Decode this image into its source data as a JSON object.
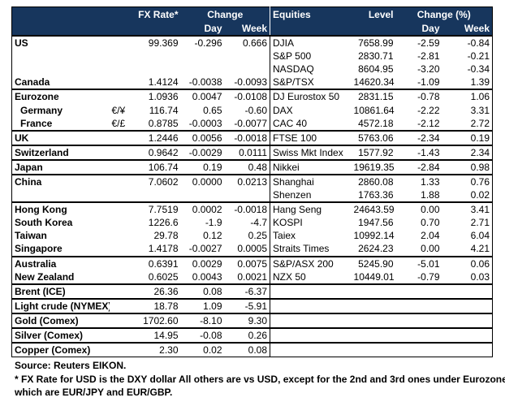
{
  "header": {
    "fx_rate": "FX Rate*",
    "change": "Change",
    "fx_day": "Day",
    "fx_week": "Week",
    "equities": "Equities",
    "level": "Level",
    "change_pct": "Change (%)",
    "eq_day": "Day",
    "eq_week": "Week"
  },
  "table": {
    "groups": [
      [
        [
          "US",
          null,
          "99.369",
          "-0.296",
          "0.666",
          "DJIA",
          "7658.99",
          "-2.59",
          "-0.84"
        ],
        [
          null,
          null,
          null,
          null,
          null,
          "S&P 500",
          "2830.71",
          "-2.81",
          "-0.21"
        ],
        [
          null,
          null,
          null,
          null,
          null,
          "NASDAQ",
          "8604.95",
          "-3.20",
          "-0.34"
        ],
        [
          "Canada",
          null,
          "1.4124",
          "-0.0038",
          "-0.0093",
          "S&P/TSX",
          "14620.34",
          "-1.09",
          "1.39"
        ]
      ],
      [
        [
          "Eurozone",
          null,
          "1.0936",
          "0.0047",
          "-0.0108",
          "DJ Eurostox 50",
          "2831.15",
          "-0.78",
          "1.06"
        ],
        [
          "Germany",
          "€/¥",
          "116.74",
          "0.65",
          "-0.60",
          "DAX",
          "10861.64",
          "-2.22",
          "3.31"
        ],
        [
          "France",
          "€/£",
          "0.8785",
          "-0.0003",
          "-0.0077",
          "CAC 40",
          "4572.18",
          "-2.12",
          "2.72"
        ]
      ],
      [
        [
          "UK",
          null,
          "1.2446",
          "0.0056",
          "-0.0018",
          "FTSE 100",
          "5763.06",
          "-2.34",
          "0.19"
        ]
      ],
      [
        [
          "Switzerland",
          null,
          "0.9642",
          "-0.0029",
          "0.0111",
          "Swiss Mkt Index",
          "1577.92",
          "-1.43",
          "2.34"
        ]
      ],
      [
        [
          "Japan",
          null,
          "106.74",
          "0.19",
          "0.48",
          "Nikkei",
          "19619.35",
          "-2.84",
          "0.98"
        ]
      ],
      [
        [
          "China",
          null,
          "7.0602",
          "0.0000",
          "0.0213",
          "Shanghai",
          "2860.08",
          "1.33",
          "0.76"
        ],
        [
          null,
          null,
          null,
          null,
          null,
          "Shenzen",
          "1763.36",
          "1.88",
          "0.02"
        ]
      ],
      [
        [
          "Hong Kong",
          null,
          "7.7519",
          "0.0002",
          "-0.0018",
          "Hang Seng",
          "24643.59",
          "0.00",
          "3.41"
        ],
        [
          "South Korea",
          null,
          "1226.6",
          "-1.9",
          "-4.7",
          "KOSPI",
          "1947.56",
          "0.70",
          "2.71"
        ],
        [
          "Taiwan",
          null,
          "29.78",
          "0.12",
          "0.25",
          "Taiex",
          "10992.14",
          "2.04",
          "6.04"
        ],
        [
          "Singapore",
          null,
          "1.4178",
          "-0.0027",
          "0.0005",
          "Straits Times",
          "2624.23",
          "0.00",
          "4.21"
        ]
      ],
      [
        [
          "Australia",
          null,
          "0.6391",
          "0.0029",
          "0.0075",
          "S&P/ASX  200",
          "5245.90",
          "-5.01",
          "0.06"
        ],
        [
          "New Zealand",
          null,
          "0.6025",
          "0.0043",
          "0.0021",
          "NZX 50",
          "10449.01",
          "-0.79",
          "0.03"
        ]
      ],
      [
        [
          "Brent (ICE)",
          null,
          "26.36",
          "0.08",
          "-6.37",
          null,
          null,
          null,
          null
        ]
      ],
      [
        [
          "Light crude (NYMEX)",
          null,
          "18.78",
          "1.09",
          "-5.91",
          null,
          null,
          null,
          null
        ]
      ],
      [
        [
          "Gold (Comex)",
          null,
          "1702.60",
          "-8.10",
          "9.30",
          null,
          null,
          null,
          null
        ]
      ],
      [
        [
          "Silver (Comex)",
          null,
          "14.95",
          "-0.08",
          "0.26",
          null,
          null,
          null,
          null
        ]
      ],
      [
        [
          "Copper (Comex)",
          null,
          "2.30",
          "0.02",
          "0.08",
          null,
          null,
          null,
          null
        ]
      ]
    ]
  },
  "notes": {
    "source": "Source:  Reuters EIKON.",
    "footnote": [
      "* FX Rate for USD is the DXY dollar  All others are vs USD, except for the 2nd and 3rd ones under Eurozone,",
      "which are EUR/JPY and EUR/GBP."
    ]
  }
}
